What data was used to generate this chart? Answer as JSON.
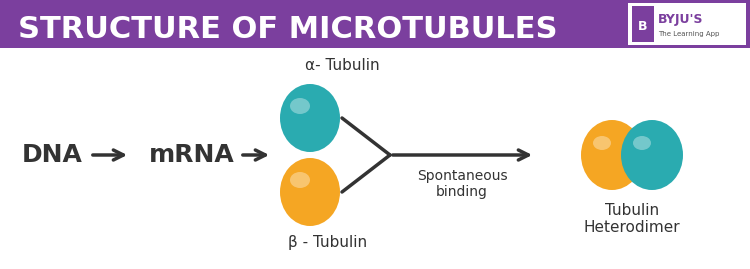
{
  "title": "STRUCTURE OF MICROTUBULES",
  "title_bg_color": "#7B3F9E",
  "title_text_color": "#FFFFFF",
  "bg_color": "#FFFFFF",
  "dna_label": "DNA",
  "mrna_label": "mRNA",
  "alpha_label": "α- Tubulin",
  "beta_label": "β - Tubulin",
  "spontaneous_label": "Spontaneous\nbinding",
  "heterodimer_label": "Tubulin\nHeterodimer",
  "teal_color": "#2AABB0",
  "orange_color": "#F5A623",
  "arrow_color": "#333333",
  "text_color": "#333333",
  "byju_bg": "#7B3F9E"
}
